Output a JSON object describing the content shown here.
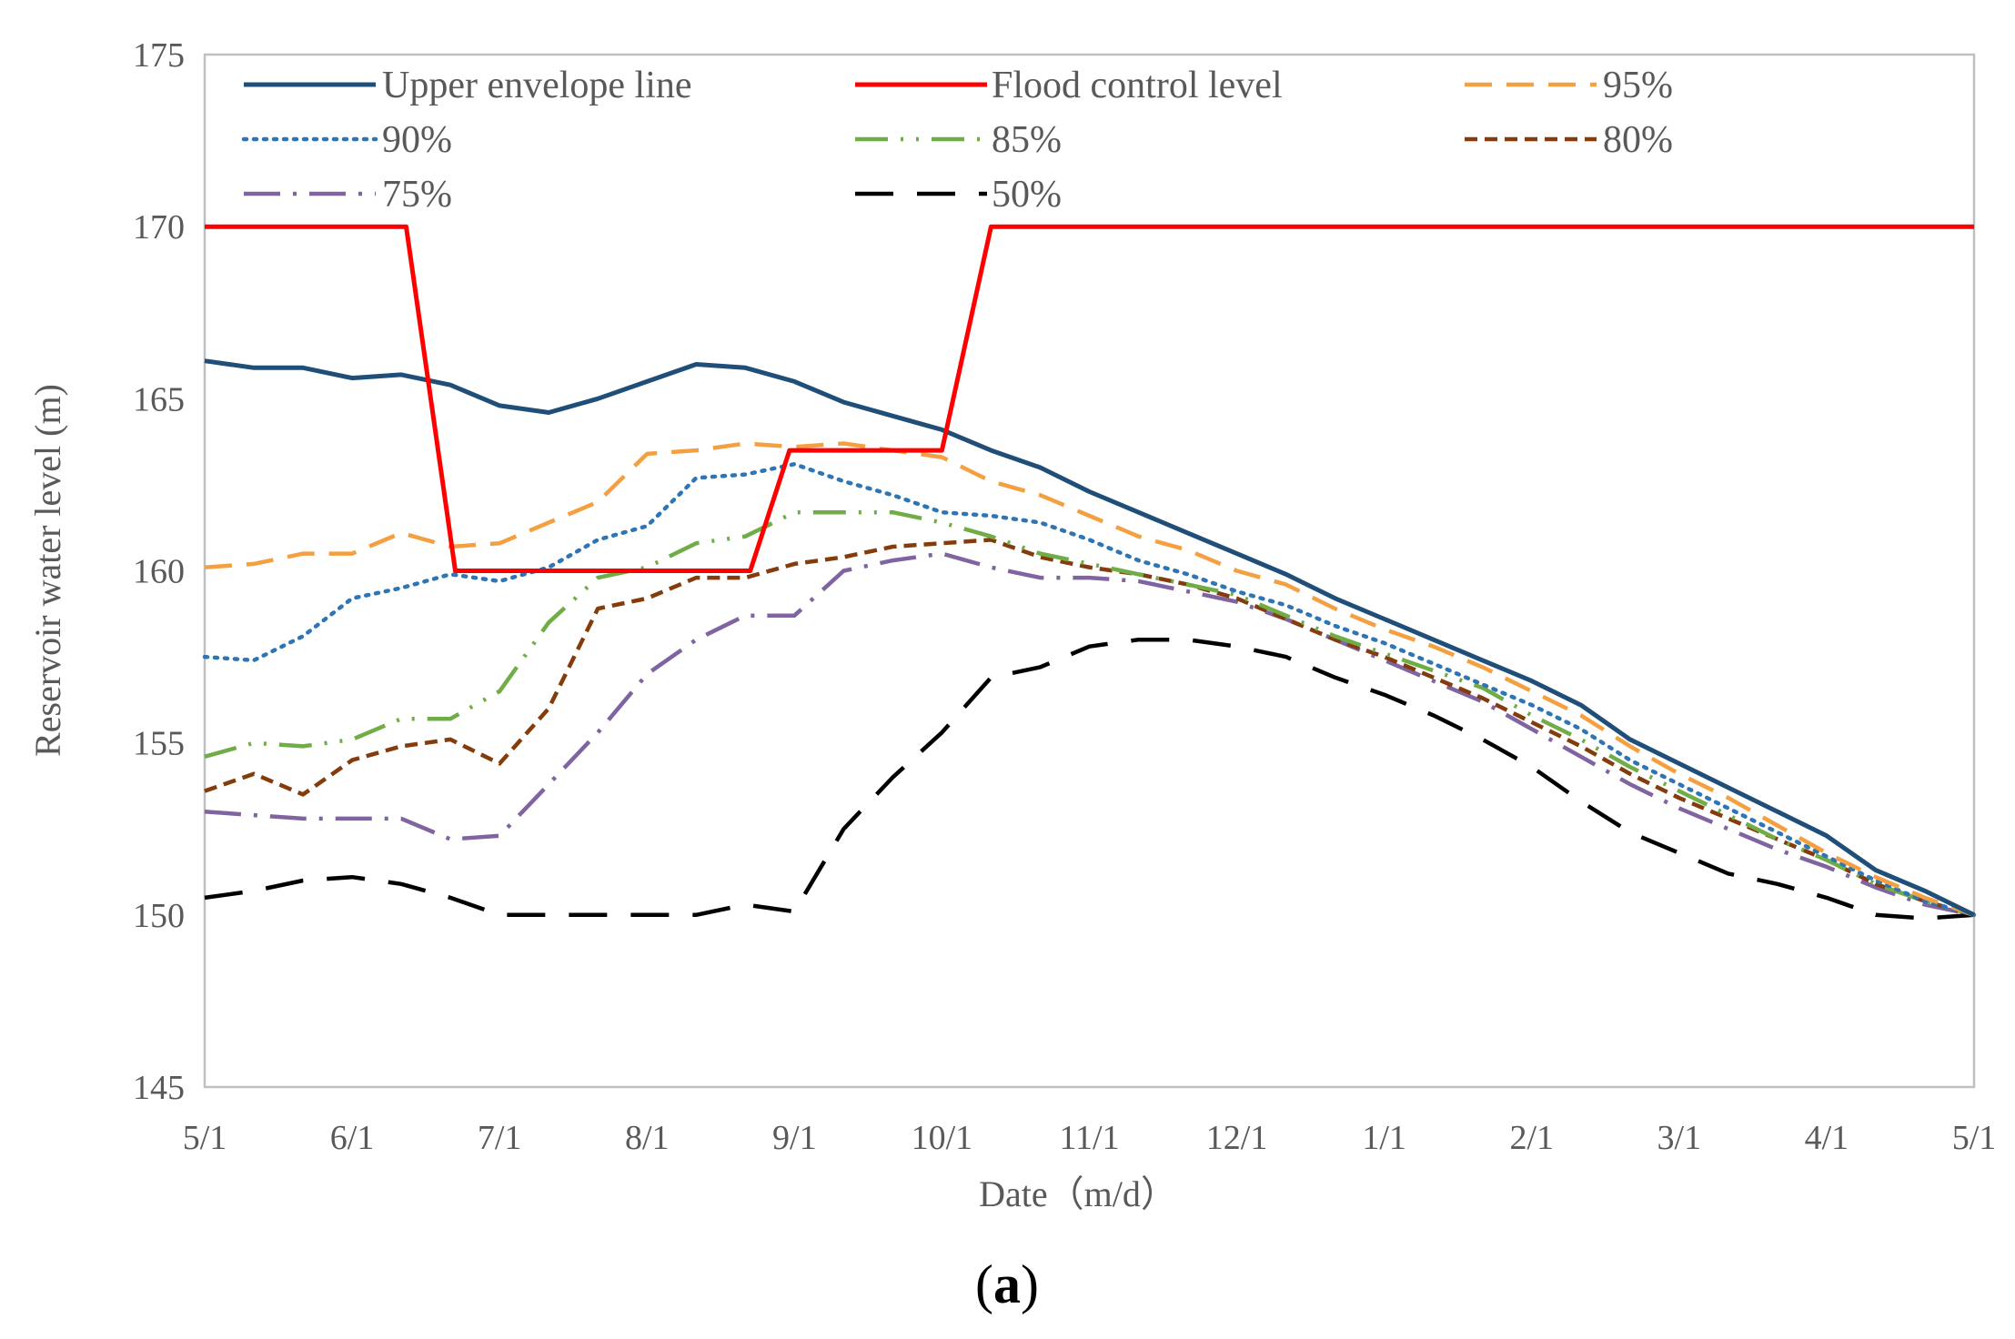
{
  "chart_data": {
    "type": "line",
    "title": "",
    "xlabel": "Date（m/d）",
    "ylabel": "Reservoir water level (m)",
    "ylim": [
      145,
      175
    ],
    "yticks": [
      145,
      150,
      155,
      160,
      165,
      170,
      175
    ],
    "xlim": [
      0,
      36
    ],
    "xticks": [
      {
        "x": 0,
        "label": "5/1"
      },
      {
        "x": 3,
        "label": "6/1"
      },
      {
        "x": 6,
        "label": "7/1"
      },
      {
        "x": 9,
        "label": "8/1"
      },
      {
        "x": 12,
        "label": "9/1"
      },
      {
        "x": 15,
        "label": "10/1"
      },
      {
        "x": 18,
        "label": "11/1"
      },
      {
        "x": 21,
        "label": "12/1"
      },
      {
        "x": 24,
        "label": "1/1"
      },
      {
        "x": 27,
        "label": "2/1"
      },
      {
        "x": 30,
        "label": "3/1"
      },
      {
        "x": 33,
        "label": "4/1"
      },
      {
        "x": 36,
        "label": "5/1"
      }
    ],
    "grid": false,
    "legend_position": "top",
    "panel_label": "a",
    "series": [
      {
        "name": "Upper envelope line",
        "color": "#1f4e79",
        "dash": "solid",
        "x": [
          0,
          1,
          2,
          3,
          4,
          5,
          6,
          7,
          8,
          9,
          10,
          11,
          12,
          13,
          14,
          15,
          16,
          17,
          18,
          19,
          20,
          21,
          22,
          23,
          24,
          25,
          26,
          27,
          28,
          29,
          30,
          31,
          32,
          33,
          34,
          35,
          36
        ],
        "values": [
          166.1,
          165.9,
          165.9,
          165.6,
          165.7,
          165.4,
          164.8,
          164.6,
          165.0,
          165.5,
          166.0,
          165.9,
          165.5,
          164.9,
          164.5,
          164.1,
          163.5,
          163.0,
          162.3,
          161.7,
          161.1,
          160.5,
          159.9,
          159.2,
          158.6,
          158.0,
          157.4,
          156.8,
          156.1,
          155.1,
          154.4,
          153.7,
          153.0,
          152.3,
          151.3,
          150.7,
          150.0
        ]
      },
      {
        "name": "Flood control level",
        "color": "#ff0000",
        "dash": "solid",
        "x": [
          0,
          4.1,
          5.1,
          11.1,
          11.9,
          15,
          16,
          36
        ],
        "values": [
          170,
          170,
          160,
          160,
          163.5,
          163.5,
          170,
          170
        ]
      },
      {
        "name": "95%",
        "color": "#f4a040",
        "dash": "long-dash",
        "x": [
          0,
          1,
          2,
          3,
          4,
          5,
          6,
          7,
          8,
          9,
          10,
          11,
          12,
          13,
          14,
          15,
          16,
          17,
          18,
          19,
          20,
          21,
          22,
          23,
          24,
          25,
          26,
          27,
          28,
          29,
          30,
          31,
          32,
          33,
          34,
          35,
          36
        ],
        "values": [
          160.1,
          160.2,
          160.5,
          160.5,
          161.1,
          160.7,
          160.8,
          161.4,
          162.0,
          163.4,
          163.5,
          163.7,
          163.6,
          163.7,
          163.5,
          163.3,
          162.6,
          162.2,
          161.6,
          161.0,
          160.6,
          160.0,
          159.6,
          158.9,
          158.3,
          157.8,
          157.2,
          156.5,
          155.8,
          154.9,
          154.1,
          153.4,
          152.6,
          151.8,
          151.1,
          150.5,
          150.0
        ]
      },
      {
        "name": "90%",
        "color": "#2e75b6",
        "dash": "dotted",
        "x": [
          0,
          1,
          2,
          3,
          4,
          5,
          6,
          7,
          8,
          9,
          10,
          11,
          12,
          13,
          14,
          15,
          16,
          17,
          18,
          19,
          20,
          21,
          22,
          23,
          24,
          25,
          26,
          27,
          28,
          29,
          30,
          31,
          32,
          33,
          34,
          35,
          36
        ],
        "values": [
          157.5,
          157.4,
          158.1,
          159.2,
          159.5,
          159.9,
          159.7,
          160.1,
          160.9,
          161.3,
          162.7,
          162.8,
          163.1,
          162.6,
          162.2,
          161.7,
          161.6,
          161.4,
          160.9,
          160.3,
          159.9,
          159.4,
          159.0,
          158.4,
          157.9,
          157.3,
          156.7,
          156.1,
          155.4,
          154.5,
          153.8,
          153.1,
          152.4,
          151.7,
          151.0,
          150.4,
          150.0
        ]
      },
      {
        "name": "85%",
        "color": "#70ad47",
        "dash": "dash-dot-dot",
        "x": [
          0,
          1,
          2,
          3,
          4,
          5,
          6,
          7,
          8,
          9,
          10,
          11,
          12,
          13,
          14,
          15,
          16,
          17,
          18,
          19,
          20,
          21,
          22,
          23,
          24,
          25,
          26,
          27,
          28,
          29,
          30,
          31,
          32,
          33,
          34,
          35,
          36
        ],
        "values": [
          154.6,
          155.0,
          154.9,
          155.1,
          155.7,
          155.7,
          156.5,
          158.5,
          159.8,
          160.1,
          160.8,
          161.0,
          161.7,
          161.7,
          161.7,
          161.4,
          161.0,
          160.5,
          160.2,
          159.9,
          159.6,
          159.3,
          158.7,
          158.1,
          157.6,
          157.1,
          156.6,
          155.8,
          155.1,
          154.3,
          153.6,
          152.9,
          152.2,
          151.6,
          150.9,
          150.4,
          150.0
        ]
      },
      {
        "name": "80%",
        "color": "#843c0c",
        "dash": "short-dash",
        "x": [
          0,
          1,
          2,
          3,
          4,
          5,
          6,
          7,
          8,
          9,
          10,
          11,
          12,
          13,
          14,
          15,
          16,
          17,
          18,
          19,
          20,
          21,
          22,
          23,
          24,
          25,
          26,
          27,
          28,
          29,
          30,
          31,
          32,
          33,
          34,
          35,
          36
        ],
        "values": [
          153.6,
          154.1,
          153.5,
          154.5,
          154.9,
          155.1,
          154.4,
          156.0,
          158.9,
          159.2,
          159.8,
          159.8,
          160.2,
          160.4,
          160.7,
          160.8,
          160.9,
          160.4,
          160.1,
          159.9,
          159.6,
          159.2,
          158.6,
          158.0,
          157.5,
          156.9,
          156.3,
          155.6,
          154.9,
          154.1,
          153.4,
          152.8,
          152.2,
          151.6,
          150.9,
          150.4,
          150.0
        ]
      },
      {
        "name": "75%",
        "color": "#8064a2",
        "dash": "long-dash-dot",
        "x": [
          0,
          1,
          2,
          3,
          4,
          5,
          6,
          7,
          8,
          9,
          10,
          11,
          12,
          13,
          14,
          15,
          16,
          17,
          18,
          19,
          20,
          21,
          22,
          23,
          24,
          25,
          26,
          27,
          28,
          29,
          30,
          31,
          32,
          33,
          34,
          35,
          36
        ],
        "values": [
          153.0,
          152.9,
          152.8,
          152.8,
          152.8,
          152.2,
          152.3,
          153.8,
          155.3,
          157.0,
          158.0,
          158.7,
          158.7,
          160.0,
          160.3,
          160.5,
          160.1,
          159.8,
          159.8,
          159.7,
          159.4,
          159.1,
          158.6,
          158.0,
          157.4,
          156.8,
          156.2,
          155.4,
          154.6,
          153.8,
          153.1,
          152.5,
          151.9,
          151.4,
          150.8,
          150.3,
          150.0
        ]
      },
      {
        "name": "50%",
        "color": "#000000",
        "dash": "long-dash-gap",
        "x": [
          0,
          1,
          2,
          3,
          4,
          5,
          6,
          7,
          8,
          9,
          10,
          11,
          12,
          13,
          14,
          15,
          16,
          17,
          18,
          19,
          20,
          21,
          22,
          23,
          24,
          25,
          26,
          27,
          28,
          29,
          30,
          31,
          32,
          33,
          34,
          35,
          36
        ],
        "values": [
          150.5,
          150.7,
          151.0,
          151.1,
          150.9,
          150.5,
          150.0,
          150.0,
          150.0,
          150.0,
          150.0,
          150.3,
          150.1,
          152.5,
          154.0,
          155.3,
          156.9,
          157.2,
          157.8,
          158.0,
          158.0,
          157.8,
          157.5,
          156.9,
          156.4,
          155.8,
          155.1,
          154.3,
          153.3,
          152.4,
          151.8,
          151.2,
          150.9,
          150.5,
          150.0,
          149.9,
          150.0
        ]
      }
    ]
  }
}
